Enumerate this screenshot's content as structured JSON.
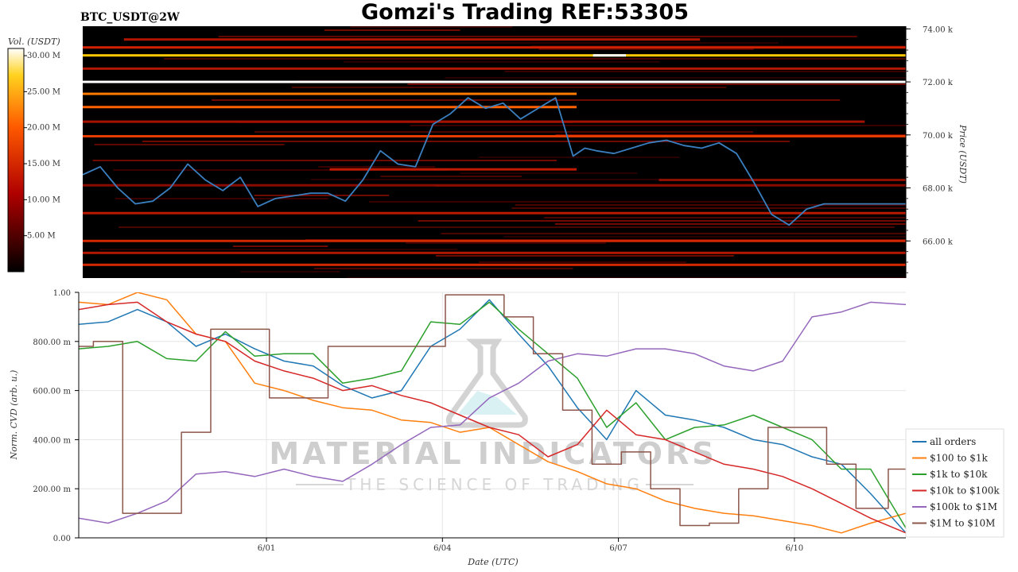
{
  "header": {
    "pair": "BTC_USDT@2W",
    "title": "Gomzi's Trading REF:53305"
  },
  "watermark": {
    "main": "MATERIAL INDICATORS",
    "sub": "THE SCIENCE OF TRADING"
  },
  "chart_data": [
    {
      "type": "heatmap",
      "ylabel": "Price (USDT)",
      "ylim": [
        64600,
        74100
      ],
      "yticks": [
        "66.00 k",
        "68.00 k",
        "70.00 k",
        "72.00 k",
        "74.00 k"
      ],
      "ytick_values": [
        66000,
        68000,
        70000,
        72000,
        74000
      ],
      "colorbar": {
        "label": "Vol. (USDT)",
        "range": [
          0,
          31000000
        ],
        "ticks": [
          "5.00 M",
          "10.00 M",
          "15.00 M",
          "20.00 M",
          "25.00 M",
          "30.00 M"
        ],
        "tick_values": [
          5000000,
          10000000,
          15000000,
          20000000,
          25000000,
          30000000
        ],
        "colormap": "hot"
      },
      "price_line": {
        "color": "#3a7fc0",
        "x": [
          0,
          0.3,
          0.6,
          0.9,
          1.2,
          1.5,
          1.8,
          2.1,
          2.4,
          2.7,
          3.0,
          3.3,
          3.6,
          3.9,
          4.2,
          4.5,
          4.8,
          5.1,
          5.4,
          5.7,
          6.0,
          6.3,
          6.6,
          6.9,
          7.2,
          7.5,
          7.8,
          8.1,
          8.4,
          8.6,
          8.8,
          9.1,
          9.4,
          9.7,
          10.0,
          10.3,
          10.6,
          10.9,
          11.2,
          11.5,
          11.8,
          12.1,
          12.4,
          12.7,
          13.0,
          13.3,
          13.6,
          13.9,
          14.1
        ],
        "y": [
          68500,
          68800,
          68000,
          67400,
          67500,
          68000,
          68900,
          68300,
          67900,
          68400,
          67300,
          67600,
          67700,
          67800,
          67800,
          67500,
          68300,
          69400,
          68900,
          68800,
          70400,
          70800,
          71400,
          71000,
          71200,
          70600,
          71000,
          71400,
          69200,
          69500,
          69400,
          69300,
          69500,
          69700,
          69800,
          69600,
          69500,
          69700,
          69300,
          68200,
          67000,
          66600,
          67200,
          67400,
          67400,
          67400,
          67400,
          67400,
          67400
        ]
      }
    },
    {
      "type": "line",
      "xlabel": "Date (UTC)",
      "ylabel": "Norm. CVD (arb. u.)",
      "xlim": [
        0,
        14.1
      ],
      "ylim": [
        0,
        1.0
      ],
      "xticks": [
        "6/01",
        "6/04",
        "6/07",
        "6/10"
      ],
      "xtick_values": [
        3.2,
        6.2,
        9.2,
        12.2
      ],
      "yticks": [
        "0.00",
        "200.00 m",
        "400.00 m",
        "600.00 m",
        "800.00 m",
        "1.00"
      ],
      "ytick_values": [
        0,
        0.2,
        0.4,
        0.6,
        0.8,
        1.0
      ],
      "legend_position": "lower-right",
      "x": [
        0,
        0.5,
        1.0,
        1.5,
        2.0,
        2.5,
        3.0,
        3.5,
        4.0,
        4.5,
        5.0,
        5.5,
        6.0,
        6.5,
        7.0,
        7.5,
        8.0,
        8.5,
        9.0,
        9.5,
        10.0,
        10.5,
        11.0,
        11.5,
        12.0,
        12.5,
        13.0,
        13.5,
        14.1
      ],
      "series": [
        {
          "name": "all orders",
          "color": "#1f77b4",
          "values": [
            0.87,
            0.88,
            0.93,
            0.88,
            0.78,
            0.83,
            0.77,
            0.72,
            0.7,
            0.62,
            0.57,
            0.6,
            0.78,
            0.85,
            0.97,
            0.83,
            0.7,
            0.53,
            0.4,
            0.6,
            0.5,
            0.48,
            0.45,
            0.4,
            0.38,
            0.33,
            0.3,
            0.18,
            0.02
          ]
        },
        {
          "name": "$100 to $1k",
          "color": "#ff7f0e",
          "values": [
            0.96,
            0.95,
            1.0,
            0.97,
            0.83,
            0.8,
            0.63,
            0.6,
            0.56,
            0.53,
            0.52,
            0.48,
            0.47,
            0.43,
            0.45,
            0.38,
            0.31,
            0.27,
            0.22,
            0.2,
            0.15,
            0.12,
            0.1,
            0.09,
            0.07,
            0.05,
            0.02,
            0.06,
            0.1
          ]
        },
        {
          "name": "$1k to $10k",
          "color": "#2ca02c",
          "values": [
            0.77,
            0.78,
            0.8,
            0.73,
            0.72,
            0.84,
            0.74,
            0.75,
            0.75,
            0.63,
            0.65,
            0.68,
            0.88,
            0.87,
            0.96,
            0.85,
            0.75,
            0.65,
            0.45,
            0.55,
            0.4,
            0.45,
            0.46,
            0.5,
            0.45,
            0.4,
            0.28,
            0.28,
            0.04
          ]
        },
        {
          "name": "$10k to $100k",
          "color": "#d62728",
          "values": [
            0.93,
            0.95,
            0.96,
            0.88,
            0.83,
            0.8,
            0.72,
            0.68,
            0.65,
            0.6,
            0.62,
            0.58,
            0.55,
            0.5,
            0.45,
            0.42,
            0.33,
            0.38,
            0.52,
            0.42,
            0.4,
            0.35,
            0.3,
            0.28,
            0.25,
            0.2,
            0.14,
            0.08,
            0.02
          ]
        },
        {
          "name": "$100k to $1M",
          "color": "#9467bd",
          "values": [
            0.08,
            0.06,
            0.1,
            0.15,
            0.26,
            0.27,
            0.25,
            0.28,
            0.25,
            0.23,
            0.3,
            0.38,
            0.45,
            0.46,
            0.57,
            0.63,
            0.72,
            0.75,
            0.74,
            0.77,
            0.77,
            0.75,
            0.7,
            0.68,
            0.72,
            0.9,
            0.92,
            0.96,
            0.95
          ]
        },
        {
          "name": "$1M to $10M",
          "color": "#8c564b",
          "values": [
            0.78,
            0.8,
            0.1,
            0.1,
            0.43,
            0.85,
            0.85,
            0.57,
            0.57,
            0.78,
            0.78,
            0.78,
            0.78,
            0.99,
            0.99,
            0.9,
            0.75,
            0.52,
            0.3,
            0.35,
            0.2,
            0.05,
            0.06,
            0.2,
            0.45,
            0.45,
            0.3,
            0.12,
            0.28
          ]
        }
      ]
    }
  ]
}
